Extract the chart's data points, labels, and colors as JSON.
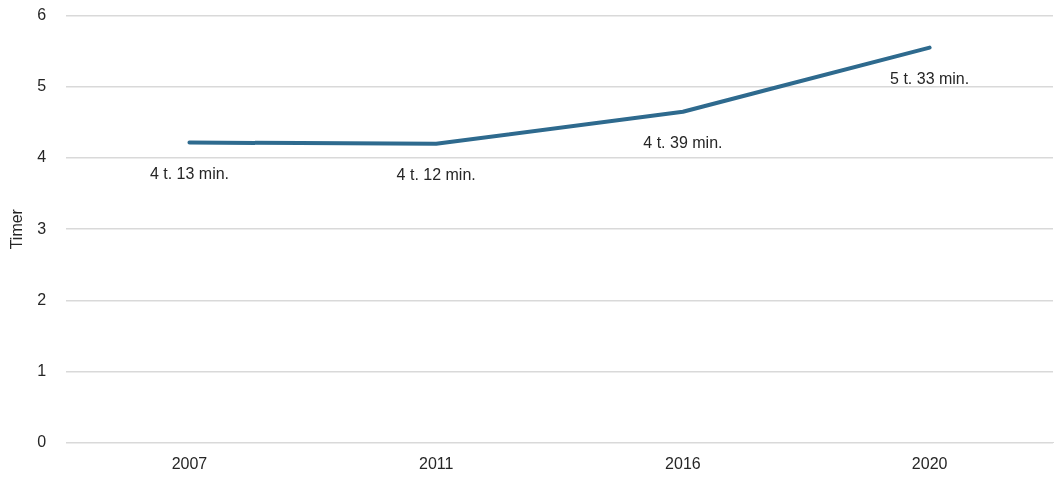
{
  "chart_data": {
    "type": "line",
    "ylabel": "Timer",
    "categories": [
      "2007",
      "2011",
      "2016",
      "2020"
    ],
    "series": [
      {
        "color": "#2e6a8e",
        "values": [
          4.217,
          4.2,
          4.65,
          5.55
        ]
      }
    ],
    "annotations": [
      {
        "text": "4 t. 13 min.",
        "x": "2007",
        "y": 4.217
      },
      {
        "text": "4 t. 12 min.",
        "x": "2011",
        "y": 4.2
      },
      {
        "text": "4 t. 39 min.",
        "x": "2016",
        "y": 4.65
      },
      {
        "text": "5 t. 33 min.",
        "x": "2020",
        "y": 5.55
      }
    ],
    "ylim": [
      0,
      6
    ],
    "yticks": [
      0,
      1,
      2,
      3,
      4,
      5,
      6
    ],
    "grid": "y",
    "legend": false,
    "marker": "none",
    "line_style": "solid"
  }
}
